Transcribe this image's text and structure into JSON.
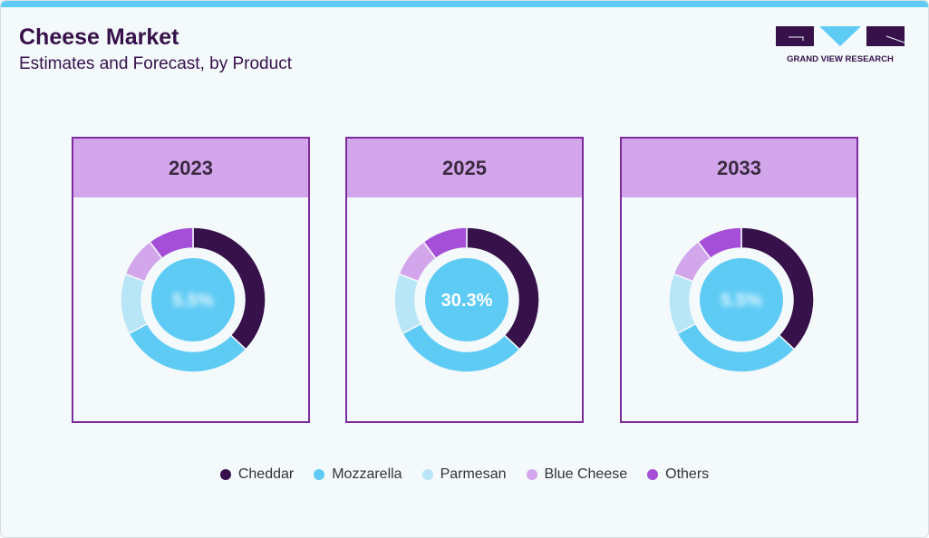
{
  "header": {
    "title": "Cheese Market",
    "subtitle": "Estimates and Forecast, by Product",
    "logo_text": "GRAND VIEW RESEARCH"
  },
  "chart_data": {
    "type": "donut",
    "categories": [
      "Cheddar",
      "Mozzarella",
      "Parmesan",
      "Blue Cheese",
      "Others"
    ],
    "colors": [
      "#36114a",
      "#5ecbf5",
      "#b9e6f7",
      "#d3a6ec",
      "#a54ed8"
    ],
    "legend_position": "bottom",
    "charts": [
      {
        "year": "2023",
        "center_label": "5.5%",
        "center_blurred": true,
        "values": [
          37,
          30.3,
          13.5,
          9,
          10.2
        ]
      },
      {
        "year": "2025",
        "center_label": "30.3%",
        "center_blurred": false,
        "values": [
          37,
          30.3,
          13.5,
          9,
          10.2
        ]
      },
      {
        "year": "2033",
        "center_label": "5.5%",
        "center_blurred": true,
        "values": [
          37,
          30.3,
          13.5,
          9,
          10.2
        ]
      }
    ]
  }
}
